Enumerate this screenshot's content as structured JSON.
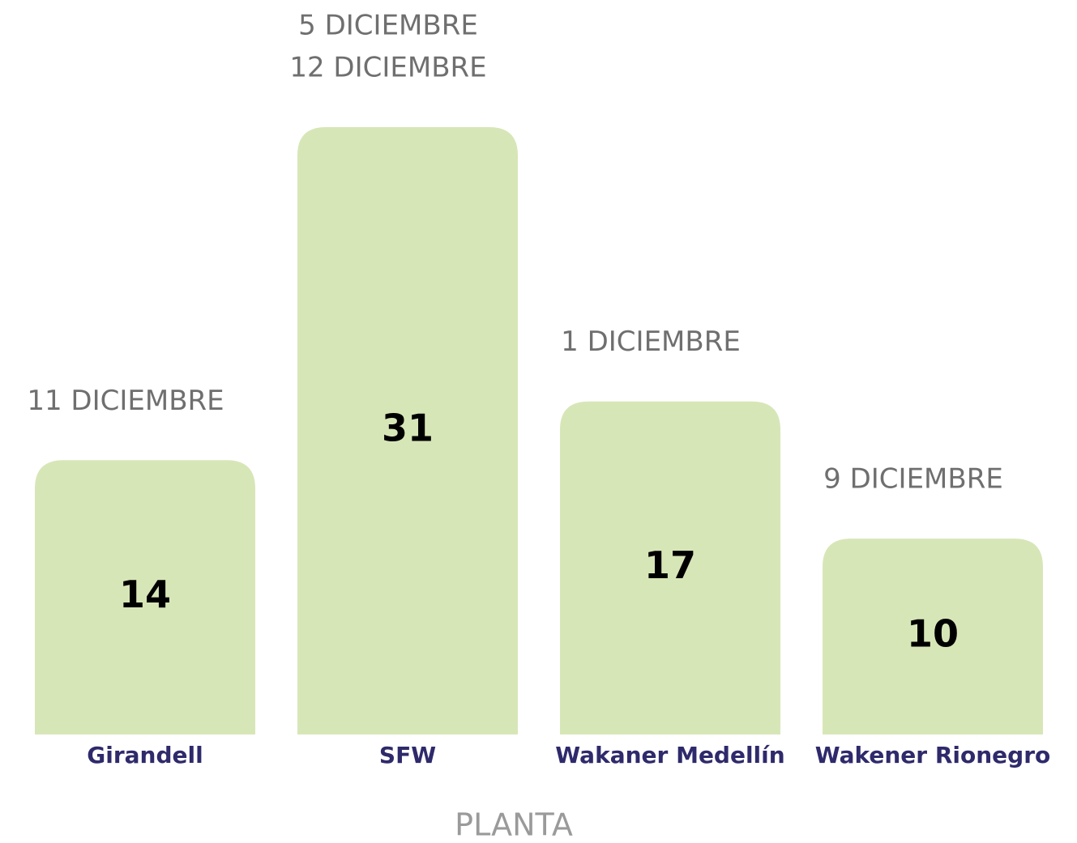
{
  "chart_data": {
    "type": "bar",
    "categories": [
      "Girandell",
      "SFW",
      "Wakaner Medellín",
      "Wakener Rionegro"
    ],
    "values": [
      14,
      31,
      17,
      10
    ],
    "color": "#d7e6b7",
    "annotations": [
      [
        "11 DICIEMBRE"
      ],
      [
        "5 DICIEMBRE",
        "12 DICIEMBRE"
      ],
      [
        "1 DICIEMBRE"
      ],
      [
        "9 DICIEMBRE"
      ]
    ],
    "x_label": "PLANTA"
  }
}
